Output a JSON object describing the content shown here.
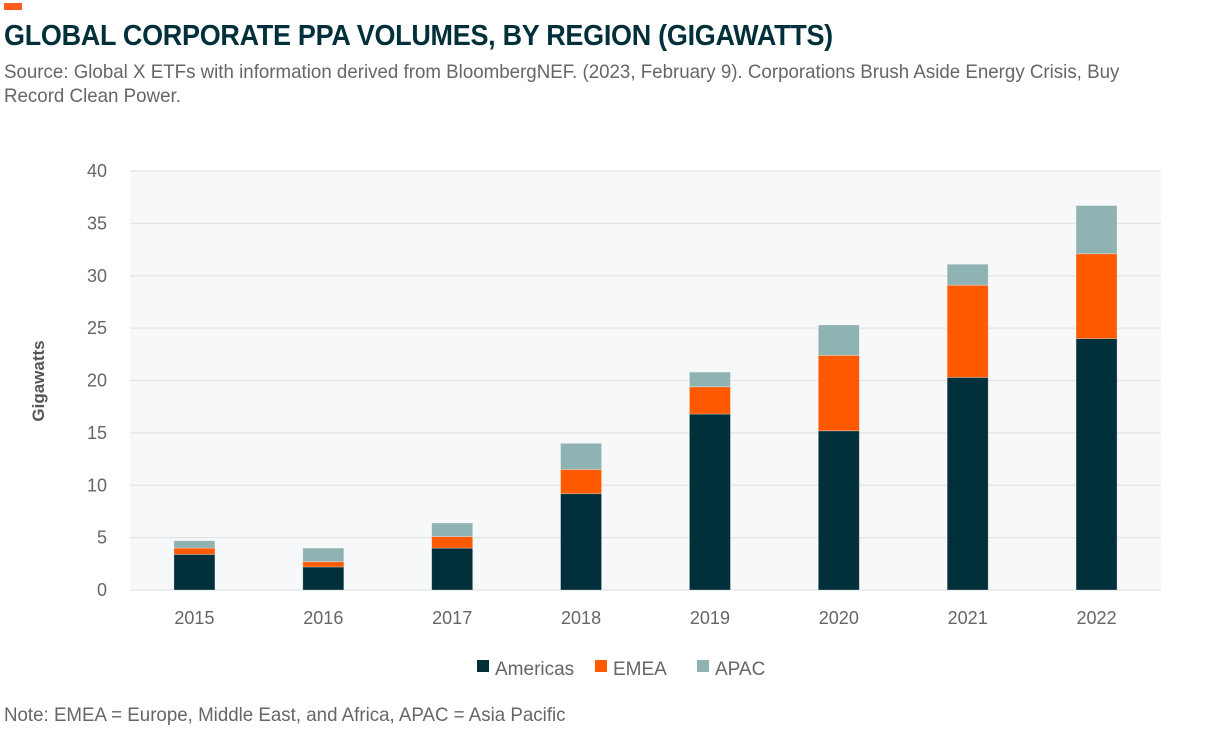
{
  "header": {
    "title": "GLOBAL CORPORATE PPA VOLUMES, BY REGION (GIGAWATTS)",
    "source": "Source: Global X ETFs with information derived from BloombergNEF. (2023, February 9). Corporations Brush Aside Energy Crisis, Buy Record Clean Power."
  },
  "footer": {
    "note": "Note: EMEA = Europe, Middle East, and Africa, APAC = Asia Pacific"
  },
  "colors": {
    "accent": "#ff5a1f",
    "title": "#01303b",
    "plot_bg": "#f7f8fa",
    "grid": "#e3e4e6"
  },
  "chart_data": {
    "type": "bar",
    "stacked": true,
    "title": "GLOBAL CORPORATE PPA VOLUMES, BY REGION (GIGAWATTS)",
    "xlabel": "",
    "ylabel": "Gigawatts",
    "ylim": [
      0,
      40
    ],
    "yticks": [
      0,
      5,
      10,
      15,
      20,
      25,
      30,
      35,
      40
    ],
    "grid": true,
    "legend_position": "bottom-center",
    "categories": [
      "2015",
      "2016",
      "2017",
      "2018",
      "2019",
      "2020",
      "2021",
      "2022"
    ],
    "series": [
      {
        "name": "Americas",
        "color": "#01303b",
        "values": [
          3.4,
          2.2,
          4.0,
          9.2,
          16.8,
          15.2,
          20.3,
          24.0
        ]
      },
      {
        "name": "EMEA",
        "color": "#ff5a00",
        "values": [
          0.6,
          0.5,
          1.1,
          2.3,
          2.6,
          7.2,
          8.8,
          8.1
        ]
      },
      {
        "name": "APAC",
        "color": "#8fb2b2",
        "values": [
          0.7,
          1.3,
          1.3,
          2.5,
          1.4,
          2.9,
          2.0,
          4.6
        ]
      }
    ]
  }
}
